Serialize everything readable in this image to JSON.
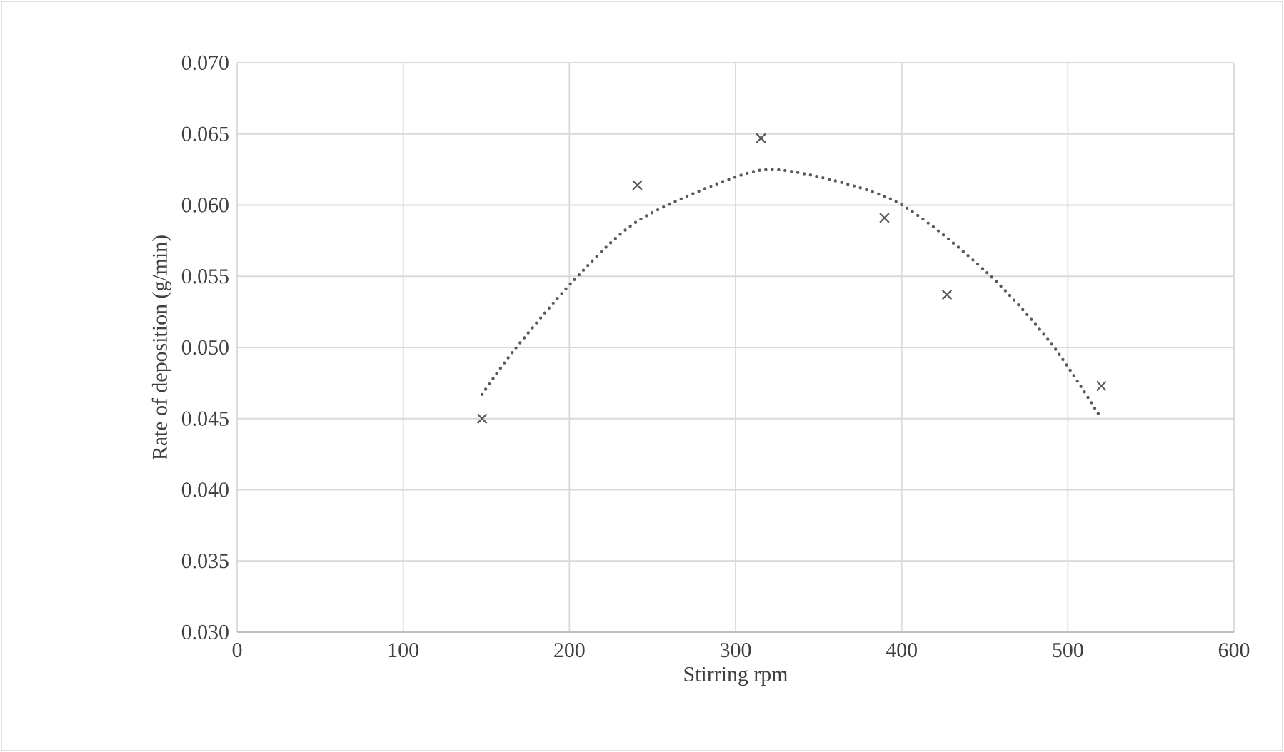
{
  "chart_data": {
    "type": "scatter",
    "xlabel": "Stirring rpm",
    "ylabel": "Rate of deposition (g/min)",
    "series": [
      {
        "color": "#595959",
        "marker": "cross",
        "x": [
          147.5,
          240.9,
          315.3,
          389.6,
          427.2,
          520.2
        ],
        "values": [
          0.045,
          0.0614,
          0.0647,
          0.0591,
          0.0537,
          0.0473
        ]
      },
      {
        "type": "line",
        "color": "#595959",
        "line_style": "dotted",
        "marker": "none",
        "x": [
          147.5,
          166,
          201.7,
          241.3,
          300.6,
          332,
          395.6,
          451,
          490.5,
          520.2
        ],
        "values": [
          0.0467,
          0.0497,
          0.0546,
          0.0589,
          0.062,
          0.0624,
          0.0603,
          0.0553,
          0.0502,
          0.045
        ]
      }
    ],
    "xlim": [
      0,
      600
    ],
    "xticks": [
      0,
      100,
      200,
      300,
      400,
      500,
      600
    ],
    "ylim": [
      0.03,
      0.07
    ],
    "yticks": [
      {
        "value": 0.03,
        "label": "0.030"
      },
      {
        "value": 0.035,
        "label": "0.035"
      },
      {
        "value": 0.04,
        "label": "0.040"
      },
      {
        "value": 0.045,
        "label": "0.045"
      },
      {
        "value": 0.05,
        "label": "0.050"
      },
      {
        "value": 0.055,
        "label": "0.055"
      },
      {
        "value": 0.06,
        "label": "0.060"
      },
      {
        "value": 0.065,
        "label": "0.065"
      },
      {
        "value": 0.07,
        "label": "0.070"
      }
    ],
    "grid": true
  }
}
